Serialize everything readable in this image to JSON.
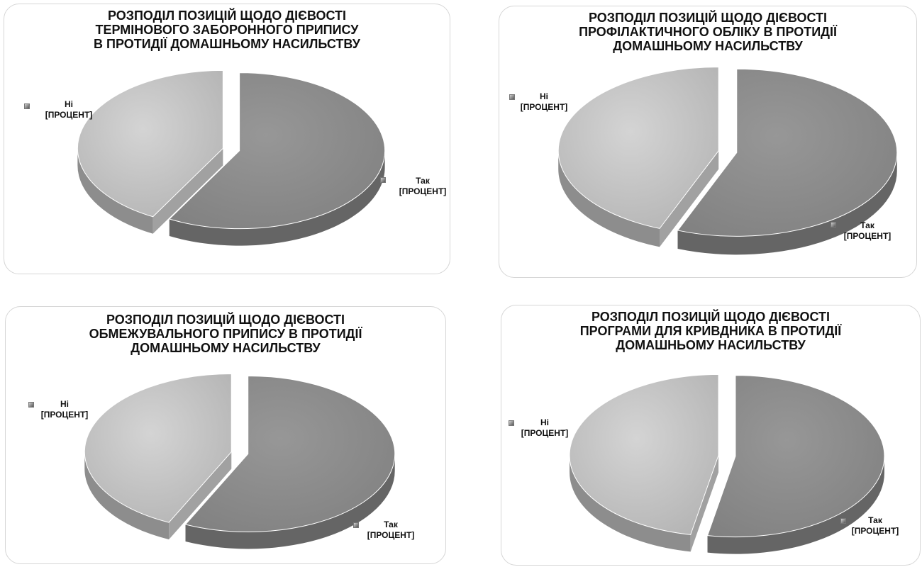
{
  "charts": [
    {
      "title_lines": [
        "РОЗПОДІЛ ПОЗИЦІЙ ЩОДО ДІЄВОСТІ",
        "ТЕРМІНОВОГО ЗАБОРОННОГО ПРИПИСУ",
        "В ПРОТИДІЇ ДОМАШНЬОМУ НАСИЛЬСТВУ"
      ],
      "labels": {
        "yes": {
          "name": "Так",
          "value": "[ПРОЦЕНТ]"
        },
        "no": {
          "name": "Ні",
          "value": "[ПРОЦЕНТ]"
        }
      }
    },
    {
      "title_lines": [
        "РОЗПОДІЛ ПОЗИЦІЙ ЩОДО ДІЄВОСТІ",
        "ПРОФІЛАКТИЧНОГО ОБЛІКУ В ПРОТИДІЇ",
        "ДОМАШНЬОМУ НАСИЛЬСТВУ"
      ],
      "labels": {
        "yes": {
          "name": "Так",
          "value": "[ПРОЦЕНТ]"
        },
        "no": {
          "name": "Ні",
          "value": "[ПРОЦЕНТ]"
        }
      }
    },
    {
      "title_lines": [
        "РОЗПОДІЛ ПОЗИЦІЙ ЩОДО ДІЄВОСТІ",
        "ОБМЕЖУВАЛЬНОГО ПРИПИСУ В ПРОТИДІЇ",
        "ДОМАШНЬОМУ НАСИЛЬСТВУ"
      ],
      "labels": {
        "yes": {
          "name": "Так",
          "value": "[ПРОЦЕНТ]"
        },
        "no": {
          "name": "Ні",
          "value": "[ПРОЦЕНТ]"
        }
      }
    },
    {
      "title_lines": [
        "РОЗПОДІЛ ПОЗИЦІЙ ЩОДО ДІЄВОСТІ",
        "ПРОГРАМИ ДЛЯ КРИВДНИКА В ПРОТИДІЇ",
        "ДОМАШНЬОМУ НАСИЛЬСТВУ"
      ],
      "labels": {
        "yes": {
          "name": "Так",
          "value": "[ПРОЦЕНТ]"
        },
        "no": {
          "name": "Ні",
          "value": "[ПРОЦЕНТ]"
        }
      }
    }
  ],
  "chart_data": [
    {
      "type": "pie",
      "style": "3d-exploded",
      "title": "РОЗПОДІЛ ПОЗИЦІЙ ЩОДО ДІЄВОСТІ ТЕРМІНОВОГО ЗАБОРОННОГО ПРИПИСУ В ПРОТИДІЇ ДОМАШНЬОМУ НАСИЛЬСТВУ",
      "categories": [
        "Так",
        "Ні"
      ],
      "values": [
        58,
        42
      ],
      "colors": [
        "#8c8c8c",
        "#c4c4c4"
      ]
    },
    {
      "type": "pie",
      "style": "3d-exploded",
      "title": "РОЗПОДІЛ ПОЗИЦІЙ ЩОДО ДІЄВОСТІ ПРОФІЛАКТИЧНОГО ОБЛІКУ В ПРОТИДІЇ ДОМАШНЬОМУ НАСИЛЬСТВУ",
      "categories": [
        "Так",
        "Ні"
      ],
      "values": [
        56,
        44
      ],
      "colors": [
        "#8c8c8c",
        "#c4c4c4"
      ]
    },
    {
      "type": "pie",
      "style": "3d-exploded",
      "title": "РОЗПОДІЛ ПОЗИЦІЙ ЩОДО ДІЄВОСТІ ОБМЕЖУВАЛЬНОГО ПРИПИСУ В ПРОТИДІЇ ДОМАШНЬОМУ НАСИЛЬСТВУ",
      "categories": [
        "Так",
        "Ні"
      ],
      "values": [
        57,
        43
      ],
      "colors": [
        "#8c8c8c",
        "#c4c4c4"
      ]
    },
    {
      "type": "pie",
      "style": "3d-exploded",
      "title": "РОЗПОДІЛ ПОЗИЦІЙ ЩОДО ДІЄВОСТІ ПРОГРАМИ ДЛЯ КРИВДНИКА В ПРОТИДІЇ ДОМАШНЬОМУ НАСИЛЬСТВУ",
      "categories": [
        "Так",
        "Ні"
      ],
      "values": [
        53,
        47
      ],
      "colors": [
        "#8c8c8c",
        "#c4c4c4"
      ]
    }
  ]
}
